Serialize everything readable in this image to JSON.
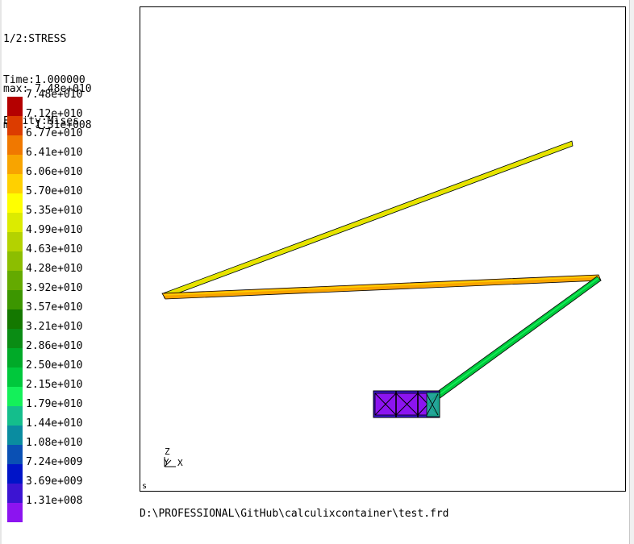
{
  "header": {
    "step": "1/2:STRESS",
    "time": "Time:1.000000",
    "entity": "Entity:Mises"
  },
  "stats": {
    "max": "max: 7.48e+010",
    "min": "min: 1.31e+008"
  },
  "legend": [
    {
      "label": "7.48e+010",
      "color": "#b40000"
    },
    {
      "label": "7.12e+010",
      "color": "#dc3c00"
    },
    {
      "label": "6.77e+010",
      "color": "#f07800"
    },
    {
      "label": "6.41e+010",
      "color": "#f8a400"
    },
    {
      "label": "6.06e+010",
      "color": "#ffd000"
    },
    {
      "label": "5.70e+010",
      "color": "#ffff00"
    },
    {
      "label": "5.35e+010",
      "color": "#dceb00"
    },
    {
      "label": "4.99e+010",
      "color": "#b4d200"
    },
    {
      "label": "4.63e+010",
      "color": "#8cbe00"
    },
    {
      "label": "4.28e+010",
      "color": "#64aa00"
    },
    {
      "label": "3.92e+010",
      "color": "#3c9600"
    },
    {
      "label": "3.57e+010",
      "color": "#147800"
    },
    {
      "label": "3.21e+010",
      "color": "#0a8c14"
    },
    {
      "label": "2.86e+010",
      "color": "#00aa28"
    },
    {
      "label": "2.50e+010",
      "color": "#00c83c"
    },
    {
      "label": "2.15e+010",
      "color": "#14f05a"
    },
    {
      "label": "1.79e+010",
      "color": "#14be8c"
    },
    {
      "label": "1.44e+010",
      "color": "#0a8ca0"
    },
    {
      "label": "1.08e+010",
      "color": "#0a50b4"
    },
    {
      "label": "7.24e+009",
      "color": "#0014c8"
    },
    {
      "label": "3.69e+009",
      "color": "#3c14d2"
    },
    {
      "label": "1.31e+008",
      "color": "#8c14f0"
    }
  ],
  "triad": {
    "z": "Z",
    "y": "Y",
    "x": "X"
  },
  "viewport_corner": "s",
  "file_path": "D:\\PROFESSIONAL\\GitHub\\calculixcontainer\\test.frd",
  "colors": {
    "frame": "#000000",
    "background": "#ffffff",
    "truss_low": "#8c14f0",
    "member_1": "#dceb00",
    "member_2": "#f8a400",
    "member_3": "#00c83c"
  }
}
